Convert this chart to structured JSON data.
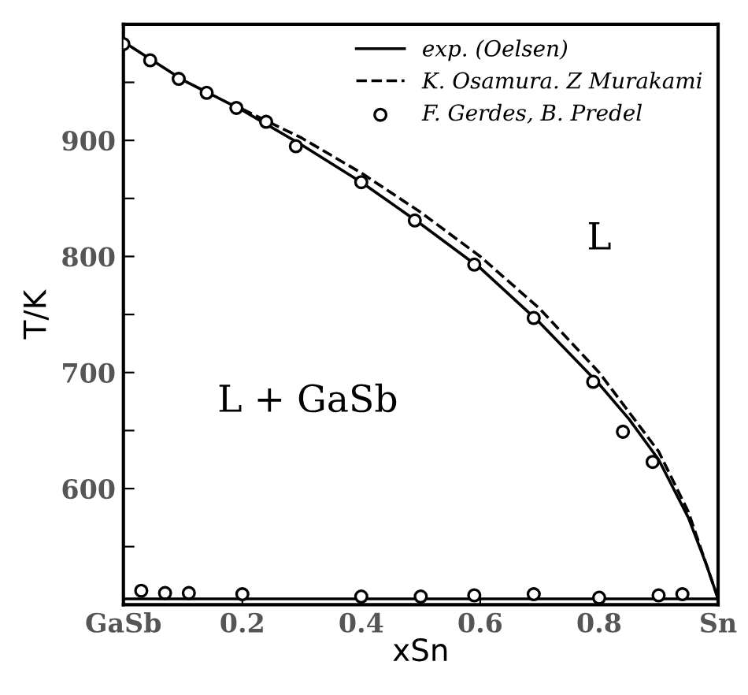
{
  "chart_data": {
    "type": "line",
    "xlabel": "xSn",
    "ylabel": "T/K",
    "xlim": [
      0,
      1
    ],
    "ylim": [
      500,
      1000
    ],
    "xticks": [
      {
        "value": 0,
        "label": "GaSb"
      },
      0.2,
      0.4,
      0.6,
      0.8,
      {
        "value": 1,
        "label": "Sn"
      }
    ],
    "yticks": [
      {
        "value": 550,
        "label": null
      },
      600,
      {
        "value": 650,
        "label": null
      },
      700,
      {
        "value": 750,
        "label": null
      },
      800,
      {
        "value": 850,
        "label": null
      },
      900,
      {
        "value": 950,
        "label": null
      }
    ],
    "grid": false,
    "legend": "top right",
    "series": [
      {
        "name": "exp. (Oelsen)",
        "line_style": "solid",
        "color": "#000000",
        "x": [
          0,
          0.1,
          0.2,
          0.3,
          0.4,
          0.5,
          0.6,
          0.7,
          0.8,
          0.85,
          0.9,
          0.95,
          0.98,
          1.0
        ],
        "values": [
          985,
          952,
          926,
          896,
          864,
          828,
          790,
          743,
          690,
          660,
          625,
          575,
          535,
          505
        ]
      },
      {
        "name": "K. Osamura. Z Murakami",
        "line_style": "dashed",
        "color": "#000000",
        "x": [
          0.2,
          0.3,
          0.4,
          0.5,
          0.6,
          0.7,
          0.8,
          0.9,
          0.95,
          1.0
        ],
        "values": [
          927,
          902,
          872,
          838,
          800,
          755,
          700,
          632,
          580,
          505
        ]
      },
      {
        "name": "F. Gerdes, B. Predel",
        "type": "scatter",
        "marker": "circle",
        "color": "#000000",
        "x": [
          0.0,
          0.045,
          0.093,
          0.14,
          0.19,
          0.24,
          0.29,
          0.4,
          0.49,
          0.59,
          0.69,
          0.79,
          0.84,
          0.89,
          0.03,
          0.07,
          0.11,
          0.2,
          0.4,
          0.5,
          0.59,
          0.69,
          0.8,
          0.9,
          0.94
        ],
        "values": [
          983,
          969,
          953,
          941,
          928,
          916,
          895,
          864,
          831,
          793,
          747,
          692,
          649,
          623,
          512,
          510,
          510,
          509,
          507,
          507,
          508,
          509,
          506,
          508,
          509
        ]
      }
    ],
    "ref_lines": [
      {
        "axis": "y",
        "value": 505,
        "color": "#000000"
      }
    ],
    "annotations": [
      "L",
      "L + GaSb"
    ]
  }
}
